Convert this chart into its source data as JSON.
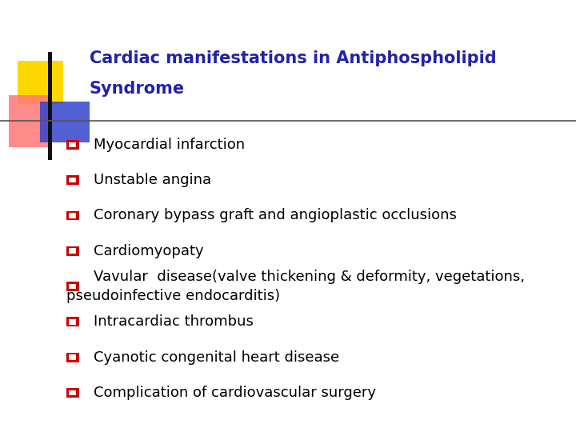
{
  "title_line1": "Cardiac manifestations in Antiphospholipid",
  "title_line2": "Syndrome",
  "title_color": "#2222AA",
  "title_fontsize": 15,
  "bullet_color": "#CC0000",
  "bullet_fill_color": "#CC0000",
  "bullet_text_color": "#000000",
  "bullet_fontsize": 13,
  "background_color": "#FFFFFF",
  "bullets": [
    "Myocardial infarction",
    "Unstable angina",
    "Coronary bypass graft and angioplastic occlusions",
    "Cardiomyopaty",
    "Vavular  disease(valve thickening & deformity, vegetations,\npseudoinfective endocarditis)",
    "Intracardiac thrombus",
    "Cyanotic congenital heart disease",
    "Complication of cardiovascular surgery"
  ],
  "logo_yellow": "#FFD700",
  "logo_red": "#FF7777",
  "logo_blue": "#3344CC",
  "line_color": "#999999"
}
